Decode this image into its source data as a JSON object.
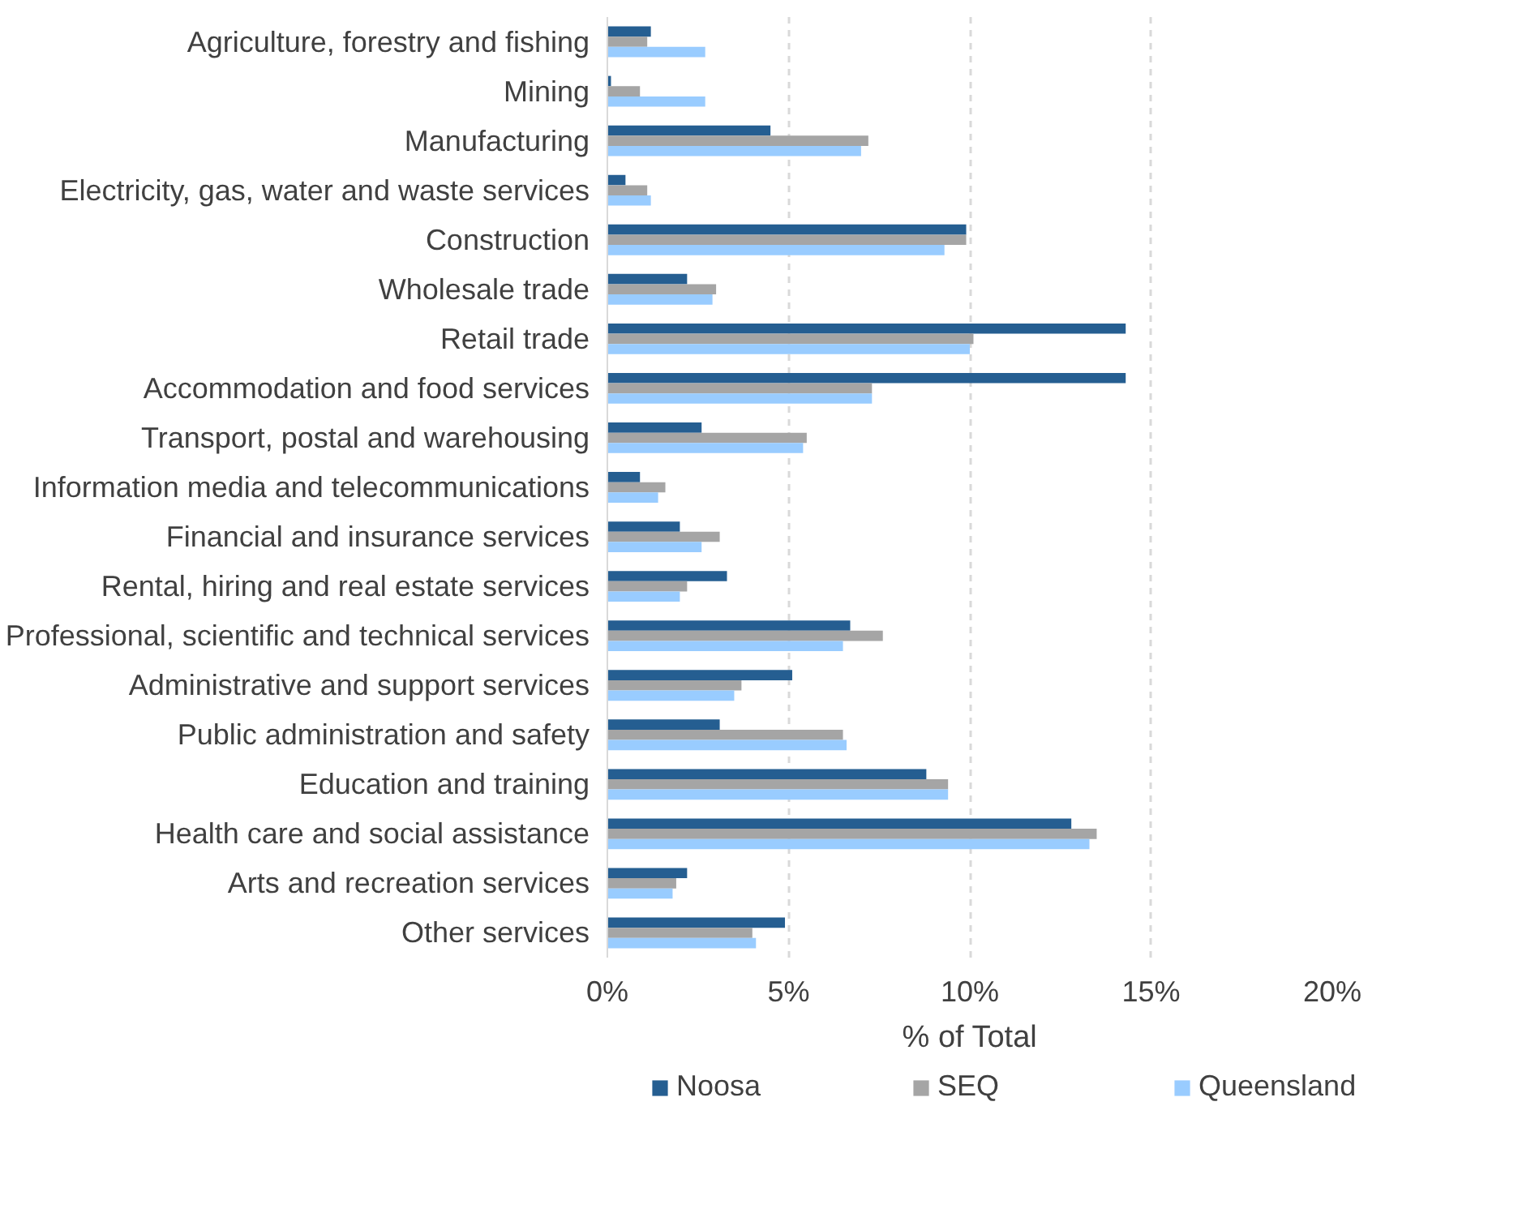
{
  "chart_data": {
    "type": "bar",
    "orientation": "horizontal",
    "xlabel": "% of Total",
    "categories": [
      "Agriculture, forestry and fishing",
      "Mining",
      "Manufacturing",
      "Electricity, gas, water and waste services",
      "Construction",
      "Wholesale trade",
      "Retail trade",
      "Accommodation and food services",
      "Transport, postal and warehousing",
      "Information media and telecommunications",
      "Financial and insurance services",
      "Rental, hiring and real estate services",
      "Professional, scientific and technical services",
      "Administrative and support services",
      "Public administration and safety",
      "Education and training",
      "Health care and social assistance",
      "Arts and recreation services",
      "Other services"
    ],
    "series": [
      {
        "name": "Noosa",
        "color": "#255e91",
        "values": [
          1.2,
          0.1,
          4.5,
          0.5,
          9.9,
          2.2,
          14.3,
          14.3,
          2.6,
          0.9,
          2.0,
          3.3,
          6.7,
          5.1,
          3.1,
          8.8,
          12.8,
          2.2,
          4.9
        ]
      },
      {
        "name": "SEQ",
        "color": "#a5a5a5",
        "values": [
          1.1,
          0.9,
          7.2,
          1.1,
          9.9,
          3.0,
          10.1,
          7.3,
          5.5,
          1.6,
          3.1,
          2.2,
          7.6,
          3.7,
          6.5,
          9.4,
          13.5,
          1.9,
          4.0
        ]
      },
      {
        "name": "Queensland",
        "color": "#99ccff",
        "values": [
          2.7,
          2.7,
          7.0,
          1.2,
          9.3,
          2.9,
          10.0,
          7.3,
          5.4,
          1.4,
          2.6,
          2.0,
          6.5,
          3.5,
          6.6,
          9.4,
          13.3,
          1.8,
          4.1
        ]
      }
    ],
    "xlim": [
      0,
      20
    ],
    "xticks": [
      {
        "value": 0,
        "label": "0%"
      },
      {
        "value": 5,
        "label": "5%"
      },
      {
        "value": 10,
        "label": "10%"
      },
      {
        "value": 15,
        "label": "15%"
      },
      {
        "value": 20,
        "label": "20%"
      }
    ],
    "grid": "x",
    "legend": "bottom"
  }
}
